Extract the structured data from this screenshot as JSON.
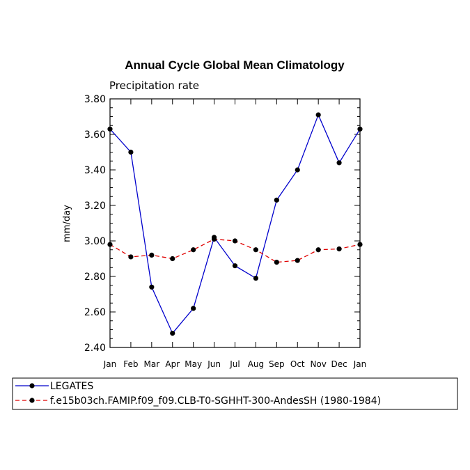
{
  "chart_data": {
    "type": "line",
    "title": "Annual Cycle Global Mean Climatology",
    "subtitle": "Precipitation rate",
    "xlabel": "",
    "ylabel": "mm/day",
    "categories": [
      "Jan",
      "Feb",
      "Mar",
      "Apr",
      "May",
      "Jun",
      "Jul",
      "Aug",
      "Sep",
      "Oct",
      "Nov",
      "Dec",
      "Jan"
    ],
    "ylim": [
      2.4,
      3.8
    ],
    "yticks": [
      "2.40",
      "2.60",
      "2.80",
      "3.00",
      "3.20",
      "3.40",
      "3.60",
      "3.80"
    ],
    "grid": false,
    "legend_position": "bottom",
    "series": [
      {
        "name": "LEGATES",
        "color": "#0000cc",
        "dash": "solid",
        "values": [
          3.63,
          3.5,
          2.74,
          2.48,
          2.62,
          3.02,
          2.86,
          2.79,
          3.23,
          3.4,
          3.71,
          3.44,
          3.63
        ]
      },
      {
        "name": "f.e15b03ch.FAMIP.f09_f09.CLB-T0-SGHHT-300-AndesSH (1980-1984)",
        "color": "#e00000",
        "dash": "dashed",
        "values": [
          2.98,
          2.91,
          2.92,
          2.9,
          2.95,
          3.01,
          3.0,
          2.95,
          2.88,
          2.89,
          2.95,
          2.955,
          2.98
        ]
      }
    ]
  }
}
